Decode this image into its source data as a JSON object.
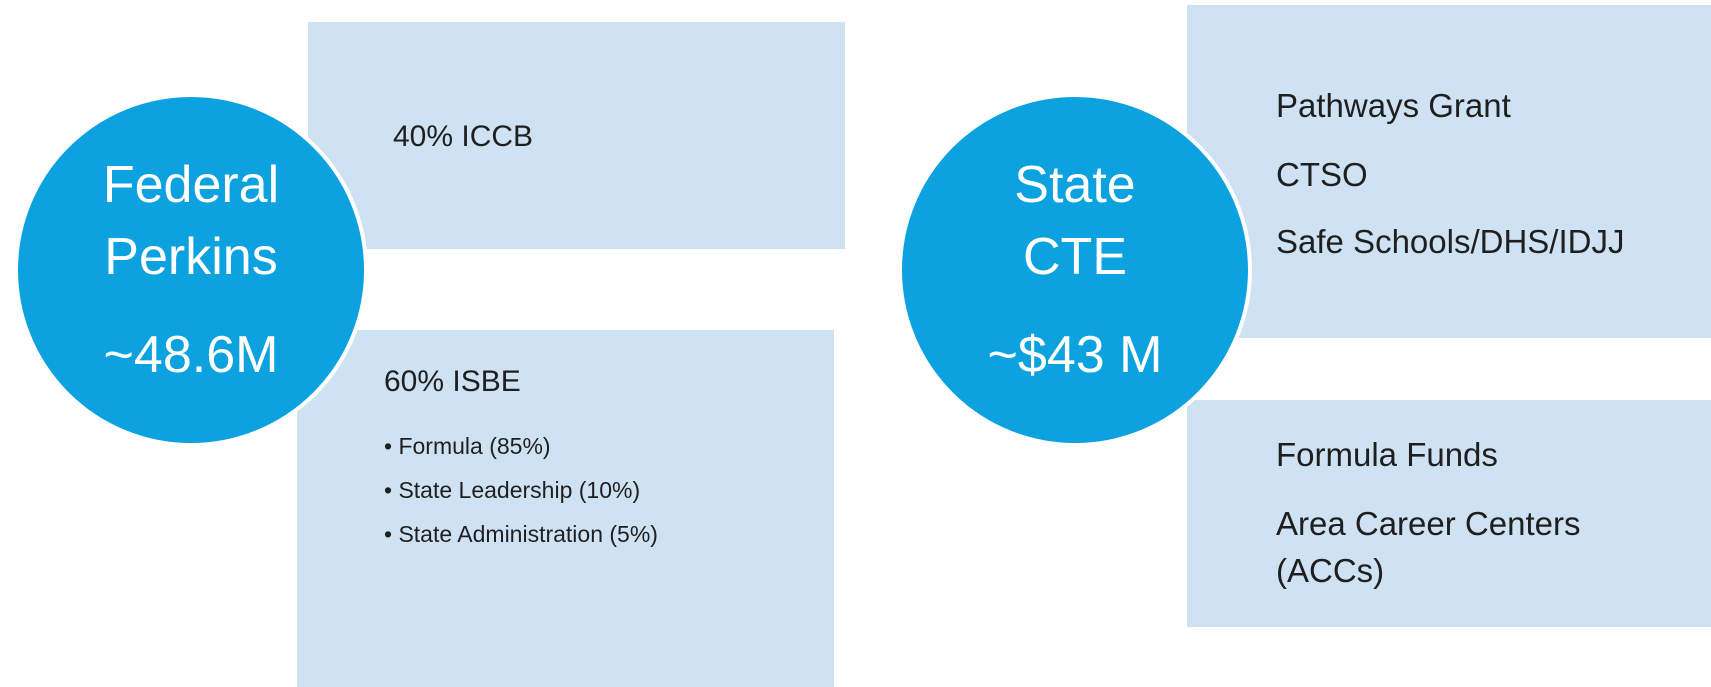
{
  "left": {
    "circle": {
      "lines": [
        "Federal",
        "Perkins"
      ],
      "amount": "~48.6M"
    },
    "boxes": [
      {
        "title": "40% ICCB"
      },
      {
        "title": "60% ISBE",
        "bullets": [
          "Formula (85%)",
          "State Leadership (10%)",
          "State Administration (5%)"
        ]
      }
    ]
  },
  "right": {
    "circle": {
      "lines": [
        "State",
        "CTE"
      ],
      "amount": "~$43 M"
    },
    "boxes": [
      {
        "items": [
          "Pathways Grant",
          "CTSO",
          "Safe Schools/DHS/IDJJ"
        ]
      },
      {
        "items": [
          "Formula Funds",
          "Area Career Centers (ACCs)"
        ]
      }
    ]
  }
}
